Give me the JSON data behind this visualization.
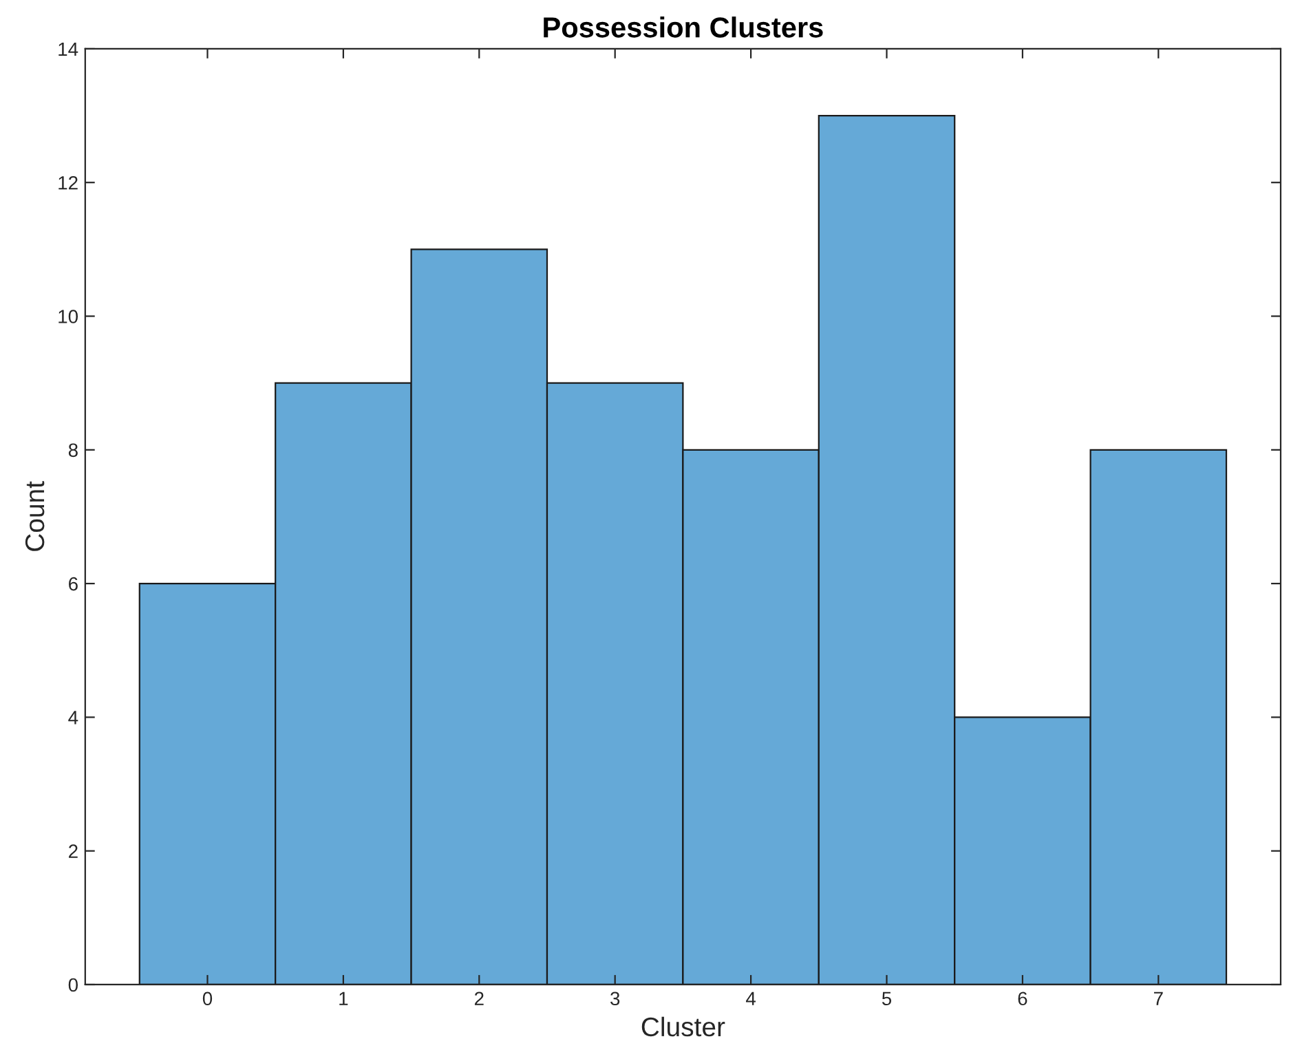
{
  "chart_data": {
    "type": "histogram",
    "title": "Possession Clusters",
    "xlabel": "Cluster",
    "ylabel": "Count",
    "bins": [
      -0.5,
      0.5,
      1.5,
      2.5,
      3.5,
      4.5,
      5.5,
      6.5,
      7.5
    ],
    "values": [
      6,
      9,
      11,
      9,
      8,
      13,
      4,
      8
    ],
    "color": "#65a9d7",
    "xlim": [
      -0.9,
      7.9
    ],
    "xticks": [
      0,
      1,
      2,
      3,
      4,
      5,
      6,
      7
    ],
    "ylim": [
      0,
      14
    ],
    "yticks": [
      0,
      2,
      4,
      6,
      8,
      10,
      12,
      14
    ],
    "grid": false
  }
}
